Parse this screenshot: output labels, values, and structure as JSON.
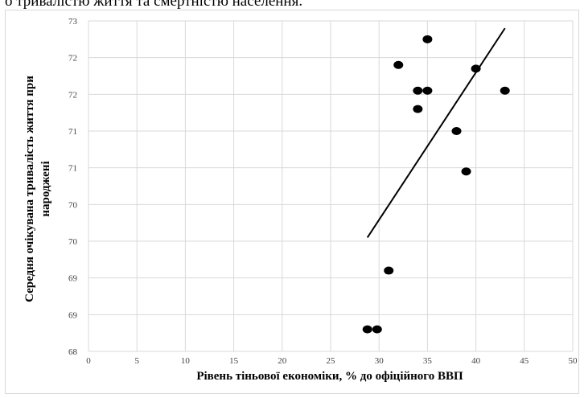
{
  "caption": "о тривалістю життя та смертністю населення.",
  "chart_data": {
    "type": "scatter",
    "title": "",
    "xlabel": "Рівень тіньової економіки, % до офіційного  ВВП",
    "ylabel": "Середня очікувана тривалість життя при народжені",
    "xlim": [
      0,
      50
    ],
    "x_ticks": [
      0,
      5,
      10,
      15,
      20,
      25,
      30,
      35,
      40,
      45,
      50
    ],
    "y_tick_labels": [
      "68",
      "69",
      "69",
      "70",
      "70",
      "71",
      "71",
      "72",
      "72",
      "73"
    ],
    "ylim": [
      68,
      72.5
    ],
    "grid": true,
    "legend": "none",
    "points": [
      {
        "x": 28.8,
        "y": 68.3
      },
      {
        "x": 29.8,
        "y": 68.3
      },
      {
        "x": 31.0,
        "y": 69.1
      },
      {
        "x": 32.0,
        "y": 71.9
      },
      {
        "x": 34.0,
        "y": 71.55
      },
      {
        "x": 34.0,
        "y": 71.3
      },
      {
        "x": 35.0,
        "y": 72.25
      },
      {
        "x": 35.0,
        "y": 71.55
      },
      {
        "x": 38.0,
        "y": 71.0
      },
      {
        "x": 39.0,
        "y": 70.45
      },
      {
        "x": 40.0,
        "y": 71.85
      },
      {
        "x": 43.0,
        "y": 71.55
      }
    ],
    "trendline": {
      "x": [
        28.8,
        43.0
      ],
      "y": [
        69.55,
        72.4
      ]
    },
    "colors": {
      "points": "#000000",
      "trendline": "#000000",
      "grid": "#d9d9d9"
    }
  }
}
